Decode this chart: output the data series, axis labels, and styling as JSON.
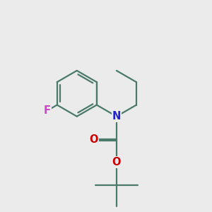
{
  "bg_color": "#ebebeb",
  "bond_color": "#4a7a6a",
  "bond_width": 1.6,
  "atom_colors": {
    "F": "#cc44cc",
    "N": "#2222cc",
    "O": "#cc0000"
  },
  "font_size_atoms": 10.5
}
